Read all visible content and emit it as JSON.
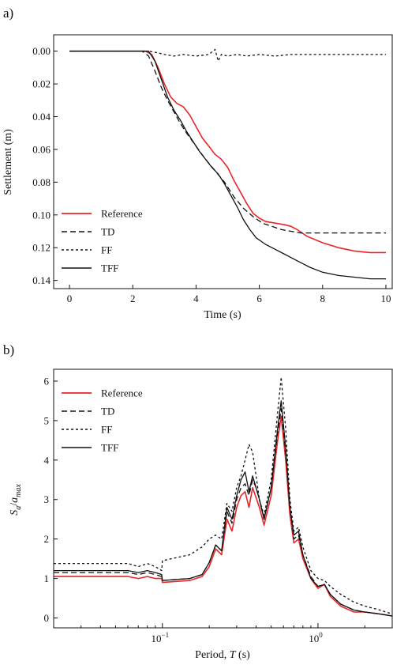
{
  "chart_data": [
    {
      "type": "line",
      "panel_label": "a)",
      "xlabel": "Time (s)",
      "ylabel": "Settlement (m)",
      "xlim": [
        -0.5,
        10.2
      ],
      "ylim": [
        -0.01,
        0.145
      ],
      "y_inverted": true,
      "x_ticks": [
        0,
        2,
        4,
        6,
        8,
        10
      ],
      "x_tick_labels": [
        "0",
        "2",
        "4",
        "6",
        "8",
        "10"
      ],
      "y_ticks": [
        0,
        0.02,
        0.04,
        0.06,
        0.08,
        0.1,
        0.12,
        0.14
      ],
      "y_tick_labels": [
        "0.00",
        "0.02",
        "0.04",
        "0.06",
        "0.08",
        "0.10",
        "0.12",
        "0.14"
      ],
      "grid": false,
      "legend": "bottom-left",
      "series": [
        {
          "name": "Reference",
          "color": "#e8262a",
          "dash": "solid",
          "x": [
            0,
            2.4,
            2.6,
            2.8,
            3.0,
            3.2,
            3.4,
            3.6,
            3.8,
            4.0,
            4.2,
            4.4,
            4.6,
            4.8,
            5.0,
            5.2,
            5.4,
            5.6,
            5.8,
            6.0,
            6.2,
            6.5,
            6.8,
            7.0,
            7.2,
            7.5,
            8.0,
            8.5,
            9.0,
            9.5,
            10.0
          ],
          "y": [
            0,
            0,
            0.002,
            0.01,
            0.02,
            0.028,
            0.032,
            0.034,
            0.039,
            0.046,
            0.053,
            0.058,
            0.063,
            0.066,
            0.071,
            0.079,
            0.086,
            0.093,
            0.099,
            0.102,
            0.104,
            0.105,
            0.106,
            0.107,
            0.109,
            0.113,
            0.117,
            0.12,
            0.122,
            0.123,
            0.123
          ]
        },
        {
          "name": "TD",
          "color": "#111111",
          "dash": "7,4",
          "x": [
            0,
            2.3,
            2.5,
            2.7,
            2.9,
            3.1,
            3.3,
            3.5,
            3.7,
            4.0,
            4.3,
            4.6,
            4.9,
            5.2,
            5.5,
            5.8,
            6.1,
            6.4,
            6.7,
            7.0,
            7.3,
            7.6,
            8.0,
            9.0,
            10.0
          ],
          "y": [
            0,
            0,
            0.003,
            0.012,
            0.022,
            0.03,
            0.037,
            0.044,
            0.05,
            0.058,
            0.066,
            0.073,
            0.08,
            0.089,
            0.096,
            0.101,
            0.105,
            0.107,
            0.109,
            0.11,
            0.111,
            0.111,
            0.111,
            0.111,
            0.111
          ]
        },
        {
          "name": "FF",
          "color": "#111111",
          "dash": "3,3",
          "x": [
            0,
            2.5,
            2.8,
            3.0,
            3.3,
            3.6,
            4.0,
            4.4,
            4.6,
            4.7,
            4.8,
            5.0,
            5.3,
            5.6,
            6.0,
            6.5,
            7.0,
            7.5,
            8.0,
            8.5,
            9.0,
            9.5,
            10.0
          ],
          "y": [
            0,
            0,
            0.001,
            0.002,
            0.003,
            0.002,
            0.003,
            0.002,
            -0.001,
            0.006,
            0.002,
            0.003,
            0.002,
            0.003,
            0.002,
            0.003,
            0.002,
            0.002,
            0.002,
            0.002,
            0.002,
            0.002,
            0.002
          ]
        },
        {
          "name": "TFF",
          "color": "#111111",
          "dash": "solid",
          "x": [
            0,
            2.5,
            2.7,
            2.9,
            3.1,
            3.3,
            3.5,
            3.7,
            3.9,
            4.1,
            4.3,
            4.5,
            4.7,
            4.9,
            5.1,
            5.3,
            5.5,
            5.7,
            5.9,
            6.2,
            6.5,
            6.8,
            7.0,
            7.3,
            7.6,
            8.0,
            8.5,
            9.0,
            9.5,
            10.0
          ],
          "y": [
            0,
            0,
            0.006,
            0.017,
            0.028,
            0.036,
            0.042,
            0.049,
            0.055,
            0.061,
            0.066,
            0.071,
            0.075,
            0.081,
            0.088,
            0.095,
            0.103,
            0.109,
            0.114,
            0.118,
            0.121,
            0.124,
            0.126,
            0.129,
            0.132,
            0.135,
            0.137,
            0.138,
            0.139,
            0.139
          ]
        }
      ]
    },
    {
      "type": "line",
      "panel_label": "b)",
      "xlabel_prefix": "Period, ",
      "xlabel_var": "T",
      "xlabel_suffix": " (s)",
      "ylabel_var": "S",
      "ylabel_sub": "a",
      "ylabel_slash": "/",
      "ylabel_var2": "a",
      "ylabel_sub2": "max",
      "x_scale": "log",
      "xlim": [
        0.02,
        3.0
      ],
      "ylim": [
        -0.25,
        6.3
      ],
      "x_major_ticks": [
        0.1,
        1
      ],
      "x_major_labels": [
        "10",
        "10"
      ],
      "x_major_exponents": [
        "−1",
        "0"
      ],
      "x_minor_ticks": [
        0.03,
        0.04,
        0.05,
        0.06,
        0.07,
        0.08,
        0.09,
        0.2,
        0.3,
        0.4,
        0.5,
        0.6,
        0.7,
        0.8,
        0.9,
        2,
        3
      ],
      "y_ticks": [
        0,
        1,
        2,
        3,
        4,
        5,
        6
      ],
      "y_tick_labels": [
        "0",
        "1",
        "2",
        "3",
        "4",
        "5",
        "6"
      ],
      "grid": false,
      "legend": "top-left",
      "series": [
        {
          "name": "Reference",
          "color": "#e8262a",
          "dash": "solid",
          "x": [
            0.02,
            0.04,
            0.06,
            0.07,
            0.08,
            0.09,
            0.099,
            0.1,
            0.15,
            0.18,
            0.2,
            0.22,
            0.24,
            0.26,
            0.28,
            0.3,
            0.32,
            0.34,
            0.36,
            0.38,
            0.4,
            0.42,
            0.45,
            0.5,
            0.55,
            0.58,
            0.62,
            0.66,
            0.7,
            0.75,
            0.8,
            0.9,
            1.0,
            1.1,
            1.2,
            1.4,
            1.7,
            2.0,
            2.5,
            3.0
          ],
          "y": [
            1.05,
            1.05,
            1.05,
            1.0,
            1.05,
            1.0,
            1.0,
            0.9,
            0.95,
            1.05,
            1.3,
            1.75,
            1.6,
            2.5,
            2.2,
            2.8,
            3.1,
            3.2,
            2.8,
            3.3,
            3.05,
            2.8,
            2.35,
            3.1,
            4.5,
            5.1,
            4.0,
            2.6,
            1.9,
            2.0,
            1.5,
            1.0,
            0.75,
            0.85,
            0.55,
            0.3,
            0.15,
            0.15,
            0.1,
            0.05
          ]
        },
        {
          "name": "TD",
          "color": "#111111",
          "dash": "7,4",
          "x": [
            0.02,
            0.04,
            0.06,
            0.07,
            0.08,
            0.09,
            0.099,
            0.1,
            0.15,
            0.18,
            0.2,
            0.22,
            0.24,
            0.26,
            0.28,
            0.3,
            0.32,
            0.34,
            0.36,
            0.38,
            0.4,
            0.42,
            0.45,
            0.5,
            0.55,
            0.58,
            0.62,
            0.66,
            0.7,
            0.75,
            0.8,
            0.9,
            1.0,
            1.1,
            1.2,
            1.4,
            1.7,
            2.0,
            2.5,
            3.0
          ],
          "y": [
            1.15,
            1.15,
            1.15,
            1.1,
            1.15,
            1.1,
            1.05,
            0.95,
            1.0,
            1.1,
            1.4,
            1.85,
            1.7,
            2.7,
            2.4,
            3.0,
            3.3,
            3.4,
            3.1,
            3.5,
            3.3,
            3.0,
            2.5,
            3.3,
            4.7,
            5.3,
            4.2,
            2.8,
            2.0,
            2.1,
            1.6,
            1.05,
            0.8,
            0.85,
            0.6,
            0.35,
            0.2,
            0.15,
            0.1,
            0.05
          ]
        },
        {
          "name": "FF",
          "color": "#111111",
          "dash": "3,3",
          "x": [
            0.02,
            0.04,
            0.06,
            0.07,
            0.08,
            0.09,
            0.099,
            0.1,
            0.15,
            0.18,
            0.2,
            0.22,
            0.24,
            0.26,
            0.28,
            0.3,
            0.32,
            0.34,
            0.36,
            0.38,
            0.4,
            0.42,
            0.45,
            0.5,
            0.55,
            0.58,
            0.62,
            0.66,
            0.7,
            0.75,
            0.8,
            0.9,
            1.0,
            1.1,
            1.2,
            1.4,
            1.7,
            2.0,
            2.5,
            3.0
          ],
          "y": [
            1.38,
            1.38,
            1.38,
            1.3,
            1.38,
            1.3,
            1.2,
            1.45,
            1.6,
            1.8,
            2.0,
            2.1,
            2.0,
            2.9,
            2.7,
            3.3,
            3.6,
            4.0,
            4.4,
            4.2,
            3.6,
            3.0,
            2.6,
            3.5,
            5.2,
            6.1,
            4.8,
            3.0,
            2.2,
            2.3,
            1.8,
            1.2,
            1.0,
            0.95,
            0.8,
            0.6,
            0.4,
            0.3,
            0.2,
            0.1
          ]
        },
        {
          "name": "TFF",
          "color": "#111111",
          "dash": "solid",
          "x": [
            0.02,
            0.04,
            0.06,
            0.07,
            0.08,
            0.09,
            0.099,
            0.1,
            0.15,
            0.18,
            0.2,
            0.22,
            0.24,
            0.26,
            0.28,
            0.3,
            0.32,
            0.34,
            0.36,
            0.38,
            0.4,
            0.42,
            0.45,
            0.5,
            0.55,
            0.58,
            0.62,
            0.66,
            0.7,
            0.75,
            0.8,
            0.9,
            1.0,
            1.1,
            1.2,
            1.4,
            1.7,
            2.0,
            2.5,
            3.0
          ],
          "y": [
            1.2,
            1.2,
            1.2,
            1.15,
            1.2,
            1.15,
            1.1,
            0.95,
            1.0,
            1.1,
            1.4,
            1.85,
            1.7,
            2.8,
            2.5,
            3.1,
            3.5,
            3.7,
            3.2,
            3.6,
            3.3,
            3.0,
            2.5,
            3.3,
            4.8,
            5.5,
            4.3,
            2.8,
            2.1,
            2.2,
            1.6,
            1.0,
            0.8,
            0.85,
            0.6,
            0.35,
            0.2,
            0.15,
            0.1,
            0.05
          ]
        }
      ]
    }
  ]
}
